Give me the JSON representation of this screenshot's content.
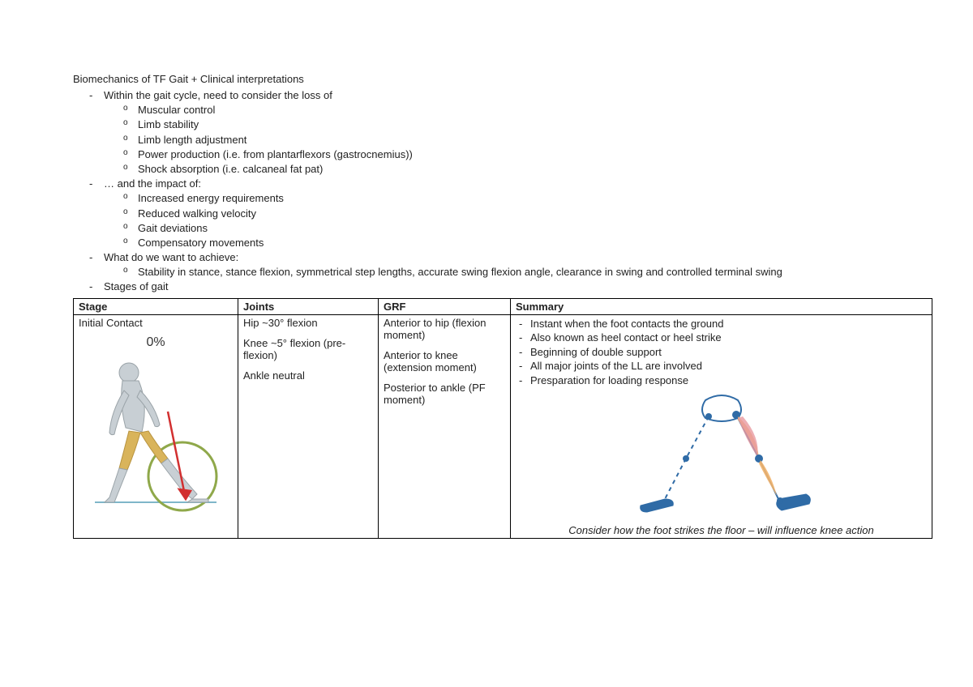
{
  "title": "Biomechanics of TF Gait + Clinical interpretations",
  "bullets": [
    {
      "text": "Within the gait cycle, need to consider the loss of",
      "sub": [
        "Muscular control",
        "Limb stability",
        "Limb length adjustment",
        "Power production (i.e. from plantarflexors (gastrocnemius))",
        "Shock absorption (i.e. calcaneal fat pat)"
      ]
    },
    {
      "text": "… and the impact of:",
      "sub": [
        "Increased energy requirements",
        "Reduced walking velocity",
        "Gait deviations",
        "Compensatory movements"
      ]
    },
    {
      "text": "What do we want to achieve:",
      "sub": [
        "Stability in stance, stance flexion, symmetrical step lengths, accurate swing flexion angle, clearance in swing and controlled terminal swing"
      ]
    },
    {
      "text": "Stages of gait",
      "sub": []
    }
  ],
  "table": {
    "headers": [
      "Stage",
      "Joints",
      "GRF",
      "Summary"
    ],
    "row": {
      "stage_name": "Initial Contact",
      "stage_percent": "0%",
      "joints": [
        "Hip ~30° flexion",
        "Knee ~5° flexion (pre-flexion)",
        "Ankle neutral"
      ],
      "grf": [
        "Anterior to hip (flexion moment)",
        "Anterior to knee (extension moment)",
        "Posterior to ankle (PF moment)"
      ],
      "summary_points": [
        "Instant when the foot contacts the ground",
        "Also known as heel contact or heel strike",
        "Beginning of double support",
        "All major joints of the LL are involved",
        "Presparation for loading response"
      ],
      "summary_note": "Consider how the foot strikes the floor – will influence knee action"
    }
  },
  "figures": {
    "walker": {
      "body_fill": "#c8cfd4",
      "body_stroke": "#9aa3a8",
      "thigh_fill": "#d9b45b",
      "circle_stroke": "#8fa84a",
      "arrow_color": "#d23030",
      "ground_color": "#7fb6c9"
    },
    "legs": {
      "bone_color": "#2f6ba6",
      "dash_color": "#2f6ba6",
      "muscle_front": "#f2b36a",
      "muscle_back": "#e89aa0",
      "joint_color": "#2f6ba6",
      "foot_fill": "#2f6ba6"
    }
  }
}
